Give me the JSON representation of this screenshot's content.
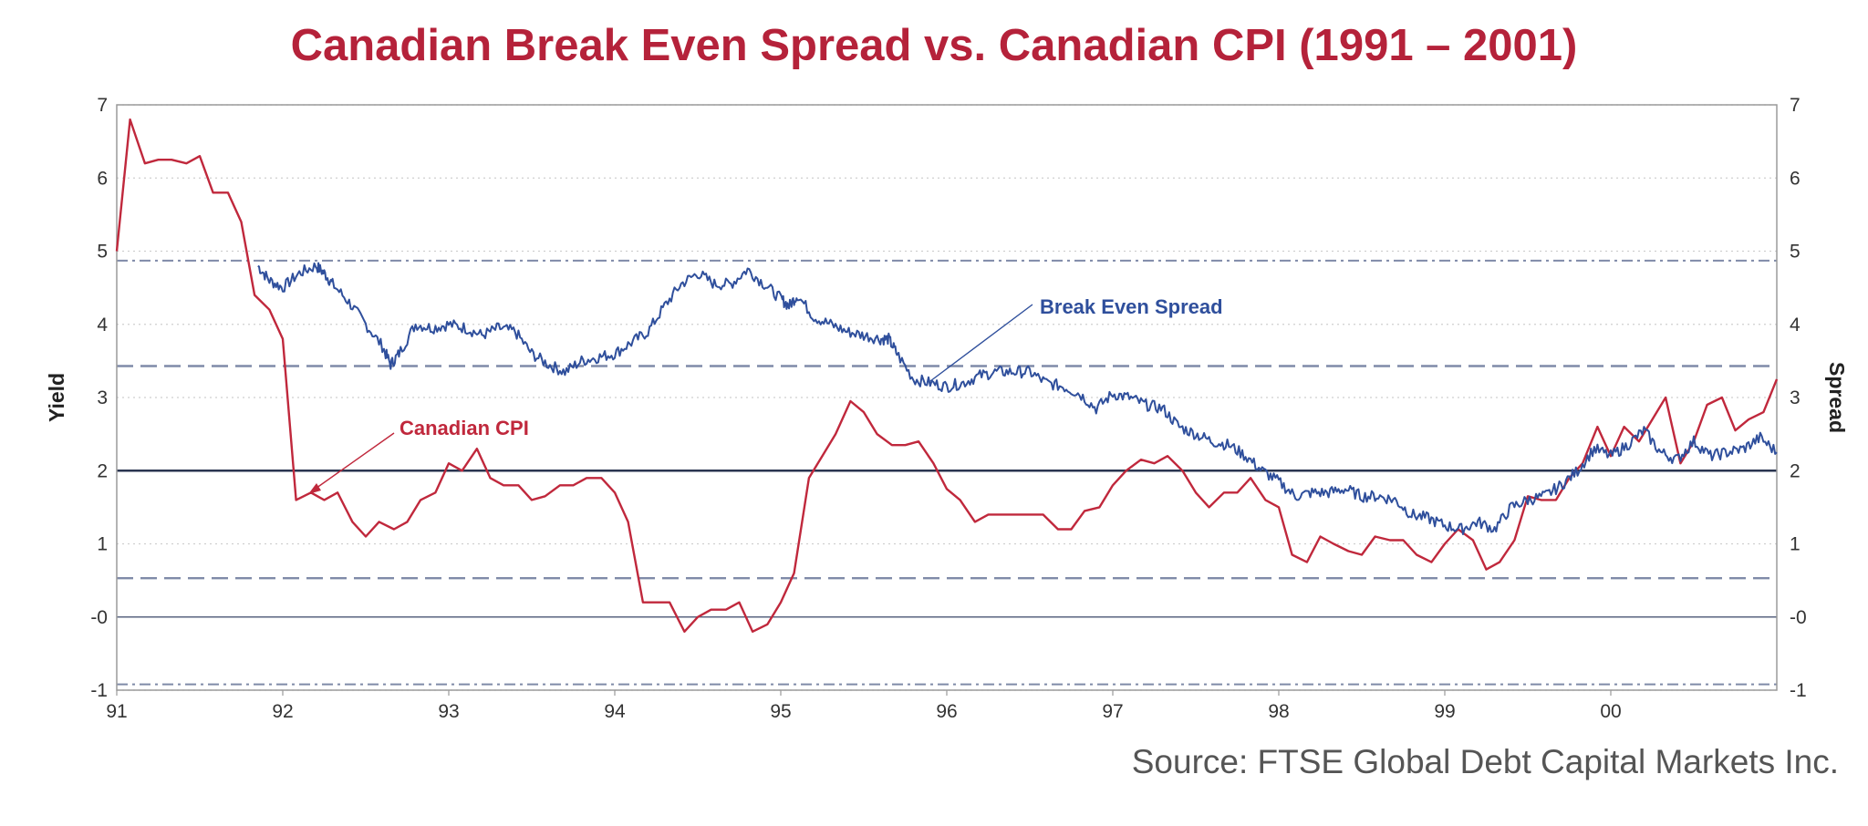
{
  "chart_data": {
    "type": "line",
    "title": "Canadian Break Even Spread vs. Canadian CPI (1991 – 2001)",
    "source": "Source: FTSE Global Debt Capital Markets Inc.",
    "xlabel": "",
    "ylabel": "Yield",
    "ylabel_right": "Spread",
    "xlim": [
      91,
      101
    ],
    "ylim": [
      -1,
      7
    ],
    "x_tick_labels": [
      "91",
      "92",
      "93",
      "94",
      "95",
      "96",
      "97",
      "98",
      "99",
      "00"
    ],
    "y_tick_labels": [
      "-1",
      "-0",
      "1",
      "2",
      "3",
      "4",
      "5",
      "6",
      "7"
    ],
    "y_tick_values": [
      -1,
      0,
      1,
      2,
      3,
      4,
      5,
      6,
      7
    ],
    "reference_lines": [
      {
        "y": 4.87,
        "style": "dash-dot"
      },
      {
        "y": 3.43,
        "style": "dashed"
      },
      {
        "y": 2.0,
        "style": "solid"
      },
      {
        "y": 0.53,
        "style": "dashed"
      },
      {
        "y": 0.0,
        "style": "solid-thin"
      },
      {
        "y": -0.92,
        "style": "dash-dot"
      }
    ],
    "colors": {
      "cpi": "#c0283c",
      "spread": "#2f4f9c",
      "title": "#b5223a",
      "ref": "#7f8aa8",
      "ref_solid": "#2a3550"
    },
    "annotations": [
      {
        "text": "Break Even Spread",
        "color": "#2f4f9c"
      },
      {
        "text": "Canadian CPI",
        "color": "#c0283c"
      }
    ],
    "series": [
      {
        "name": "Canadian CPI",
        "x": [
          91.0,
          91.08,
          91.17,
          91.25,
          91.33,
          91.42,
          91.5,
          91.58,
          91.67,
          91.75,
          91.83,
          91.92,
          92.0,
          92.08,
          92.17,
          92.25,
          92.33,
          92.42,
          92.5,
          92.58,
          92.67,
          92.75,
          92.83,
          92.92,
          93.0,
          93.08,
          93.17,
          93.25,
          93.33,
          93.42,
          93.5,
          93.58,
          93.67,
          93.75,
          93.83,
          93.92,
          94.0,
          94.08,
          94.17,
          94.25,
          94.33,
          94.42,
          94.5,
          94.58,
          94.67,
          94.75,
          94.83,
          94.92,
          95.0,
          95.08,
          95.17,
          95.25,
          95.33,
          95.42,
          95.5,
          95.58,
          95.67,
          95.75,
          95.83,
          95.92,
          96.0,
          96.08,
          96.17,
          96.25,
          96.33,
          96.42,
          96.5,
          96.58,
          96.67,
          96.75,
          96.83,
          96.92,
          97.0,
          97.08,
          97.17,
          97.25,
          97.33,
          97.42,
          97.5,
          97.58,
          97.67,
          97.75,
          97.83,
          97.92,
          98.0,
          98.08,
          98.17,
          98.25,
          98.33,
          98.42,
          98.5,
          98.58,
          98.67,
          98.75,
          98.83,
          98.92,
          99.0,
          99.08,
          99.17,
          99.25,
          99.33,
          99.42,
          99.5,
          99.58,
          99.67,
          99.75,
          99.83,
          99.92,
          100.0,
          100.08,
          100.17,
          100.25,
          100.33,
          100.42,
          100.5,
          100.58,
          100.67,
          100.75,
          100.83,
          100.92,
          101.0
        ],
        "values": [
          5.0,
          6.8,
          6.2,
          6.25,
          6.25,
          6.2,
          6.3,
          5.8,
          5.8,
          5.4,
          4.4,
          4.2,
          3.8,
          1.6,
          1.7,
          1.6,
          1.7,
          1.3,
          1.1,
          1.3,
          1.2,
          1.3,
          1.6,
          1.7,
          2.1,
          2.0,
          2.3,
          1.9,
          1.8,
          1.8,
          1.6,
          1.65,
          1.8,
          1.8,
          1.9,
          1.9,
          1.7,
          1.3,
          0.2,
          0.2,
          0.2,
          -0.2,
          0.0,
          0.1,
          0.1,
          0.2,
          -0.2,
          -0.1,
          0.2,
          0.6,
          1.9,
          2.2,
          2.5,
          2.95,
          2.8,
          2.5,
          2.35,
          2.35,
          2.4,
          2.1,
          1.75,
          1.6,
          1.3,
          1.4,
          1.4,
          1.4,
          1.4,
          1.4,
          1.2,
          1.2,
          1.45,
          1.5,
          1.8,
          2.0,
          2.15,
          2.1,
          2.2,
          2.0,
          1.7,
          1.5,
          1.7,
          1.7,
          1.9,
          1.6,
          1.5,
          0.85,
          0.75,
          1.1,
          1.0,
          0.9,
          0.85,
          1.1,
          1.05,
          1.05,
          0.85,
          0.75,
          1.0,
          1.2,
          1.05,
          0.65,
          0.75,
          1.05,
          1.65,
          1.6,
          1.6,
          1.9,
          2.1,
          2.6,
          2.2,
          2.6,
          2.4,
          2.7,
          3.0,
          2.1,
          2.4,
          2.9,
          3.0,
          2.55,
          2.7,
          2.8,
          3.25
        ]
      },
      {
        "name": "Break Even Spread",
        "x": [
          91.85,
          91.92,
          92.0,
          92.1,
          92.2,
          92.25,
          92.3,
          92.4,
          92.5,
          92.6,
          92.65,
          92.7,
          92.8,
          92.9,
          93.0,
          93.1,
          93.2,
          93.3,
          93.4,
          93.5,
          93.6,
          93.7,
          93.8,
          93.9,
          94.0,
          94.1,
          94.2,
          94.3,
          94.4,
          94.5,
          94.6,
          94.7,
          94.8,
          94.9,
          95.0,
          95.05,
          95.1,
          95.2,
          95.3,
          95.4,
          95.5,
          95.6,
          95.65,
          95.7,
          95.8,
          95.9,
          96.0,
          96.1,
          96.2,
          96.3,
          96.4,
          96.5,
          96.6,
          96.7,
          96.8,
          96.9,
          97.0,
          97.1,
          97.2,
          97.3,
          97.4,
          97.5,
          97.6,
          97.7,
          97.8,
          97.9,
          98.0,
          98.1,
          98.2,
          98.3,
          98.4,
          98.5,
          98.6,
          98.7,
          98.8,
          98.9,
          99.0,
          99.1,
          99.2,
          99.3,
          99.4,
          99.5,
          99.6,
          99.7,
          99.8,
          99.9,
          100.0,
          100.1,
          100.2,
          100.3,
          100.4,
          100.5,
          100.6,
          100.7,
          100.8,
          100.9,
          101.0
        ],
        "values": [
          4.8,
          4.6,
          4.5,
          4.7,
          4.8,
          4.7,
          4.55,
          4.3,
          4.0,
          3.7,
          3.45,
          3.6,
          4.0,
          3.95,
          4.0,
          3.95,
          3.85,
          3.95,
          3.9,
          3.6,
          3.45,
          3.35,
          3.5,
          3.55,
          3.6,
          3.75,
          3.9,
          4.25,
          4.55,
          4.7,
          4.55,
          4.55,
          4.75,
          4.55,
          4.35,
          4.25,
          4.4,
          4.1,
          4.0,
          3.9,
          3.85,
          3.8,
          3.8,
          3.6,
          3.25,
          3.2,
          3.15,
          3.2,
          3.3,
          3.35,
          3.35,
          3.35,
          3.2,
          3.15,
          3.05,
          2.85,
          3.05,
          3.0,
          2.9,
          2.85,
          2.6,
          2.5,
          2.4,
          2.35,
          2.2,
          2.0,
          1.85,
          1.65,
          1.7,
          1.7,
          1.75,
          1.65,
          1.65,
          1.6,
          1.4,
          1.35,
          1.25,
          1.2,
          1.3,
          1.2,
          1.5,
          1.6,
          1.65,
          1.8,
          2.0,
          2.3,
          2.2,
          2.35,
          2.55,
          2.25,
          2.15,
          2.4,
          2.2,
          2.25,
          2.3,
          2.45,
          2.25
        ]
      }
    ]
  }
}
